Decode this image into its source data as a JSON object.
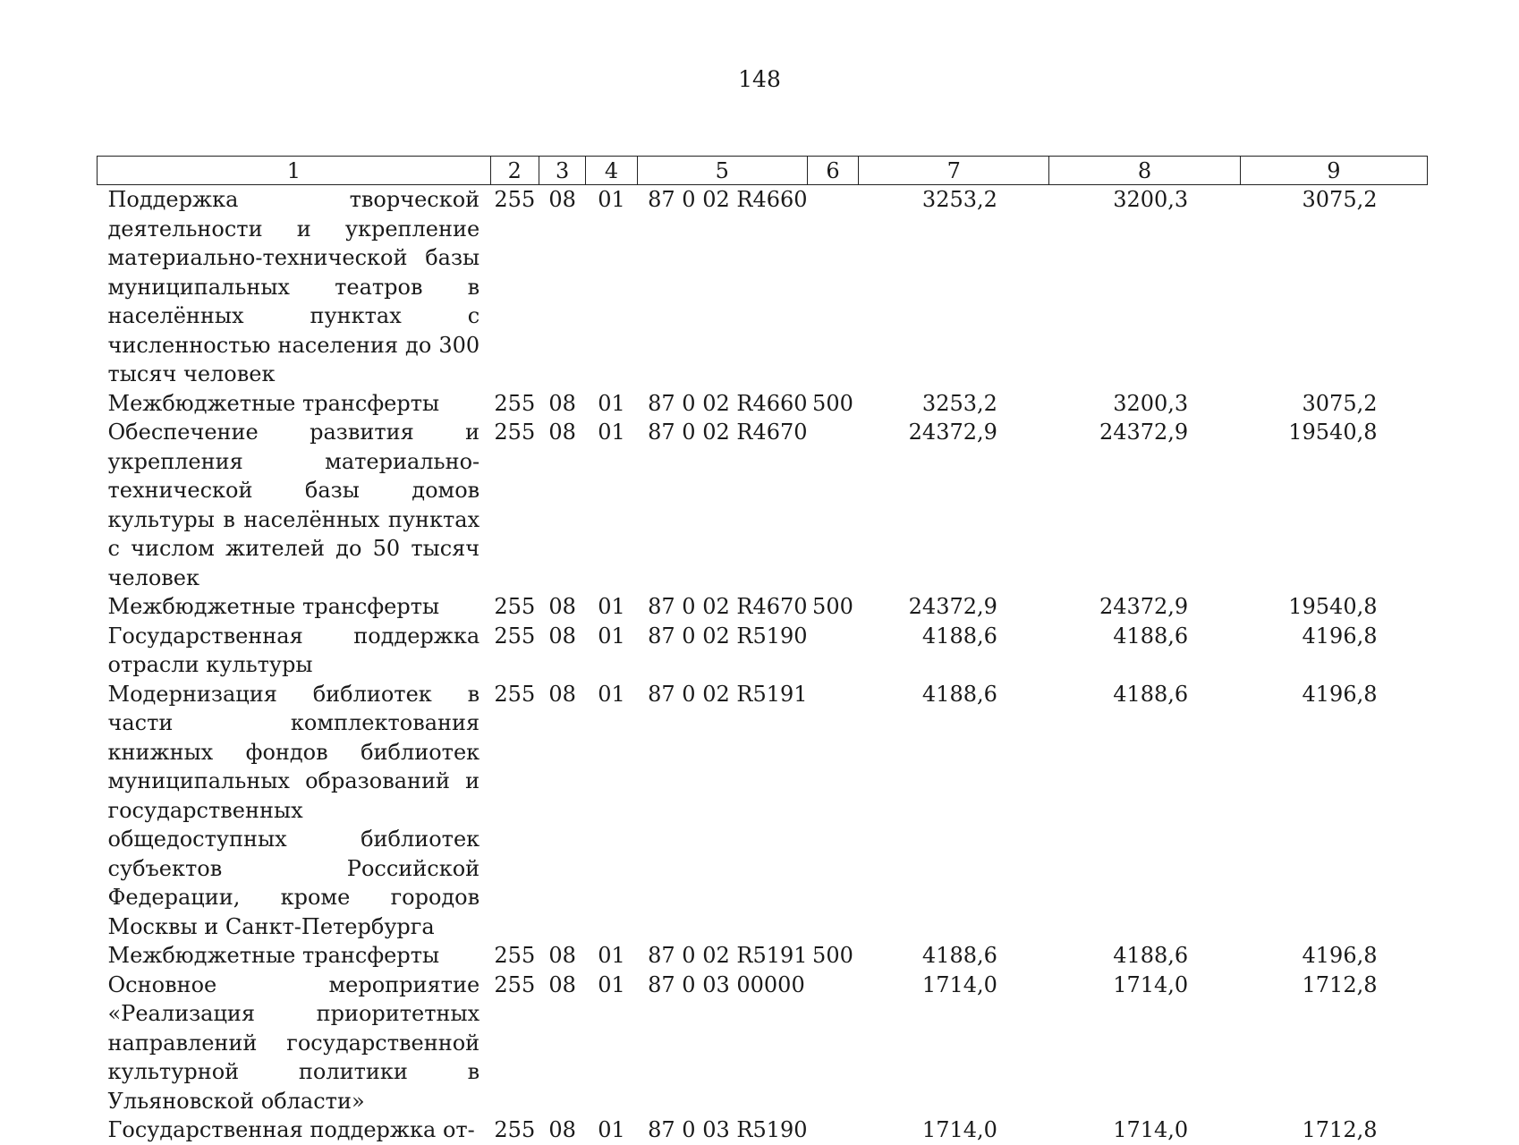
{
  "page_number": "148",
  "table": {
    "headers": [
      "1",
      "2",
      "3",
      "4",
      "5",
      "6",
      "7",
      "8",
      "9"
    ],
    "rows": [
      {
        "name": "Поддержка творческой деятельности и укрепление материально-технической базы муниципальных театров в населённых пунктах с численностью населения до 300 тысяч человек",
        "ved": "255",
        "sec": "08",
        "sub": "01",
        "csr": "87 0 02 R4660",
        "vr": "",
        "y1": "3253,2",
        "y2": "3200,3",
        "y3": "3075,2"
      },
      {
        "name": "Межбюджетные трансферты",
        "ved": "255",
        "sec": "08",
        "sub": "01",
        "csr": "87 0 02 R4660",
        "vr": "500",
        "y1": "3253,2",
        "y2": "3200,3",
        "y3": "3075,2"
      },
      {
        "name": "Обеспечение развития и укрепления материально-технической базы домов культуры в населённых пунктах с числом жителей до 50 тысяч человек",
        "ved": "255",
        "sec": "08",
        "sub": "01",
        "csr": "87 0 02 R4670",
        "vr": "",
        "y1": "24372,9",
        "y2": "24372,9",
        "y3": "19540,8"
      },
      {
        "name": "Межбюджетные трансферты",
        "ved": "255",
        "sec": "08",
        "sub": "01",
        "csr": "87 0 02 R4670",
        "vr": "500",
        "y1": "24372,9",
        "y2": "24372,9",
        "y3": "19540,8"
      },
      {
        "name": "Государственная поддержка отрасли культуры",
        "ved": "255",
        "sec": "08",
        "sub": "01",
        "csr": "87 0 02 R5190",
        "vr": "",
        "y1": "4188,6",
        "y2": "4188,6",
        "y3": "4196,8"
      },
      {
        "name": "Модернизация библиотек в части комплектования книжных фондов библиотек муниципальных образований и государственных общедоступных библиотек субъектов Российской Федерации, кроме городов Москвы и Санкт-Петербурга",
        "ved": "255",
        "sec": "08",
        "sub": "01",
        "csr": "87 0 02 R5191",
        "vr": "",
        "y1": "4188,6",
        "y2": "4188,6",
        "y3": "4196,8"
      },
      {
        "name": "Межбюджетные трансферты",
        "ved": "255",
        "sec": "08",
        "sub": "01",
        "csr": "87 0 02 R5191",
        "vr": "500",
        "y1": "4188,6",
        "y2": "4188,6",
        "y3": "4196,8"
      },
      {
        "name": "Основное мероприятие «Реализация приоритетных направлений государственной культурной политики в Ульяновской области»",
        "ved": "255",
        "sec": "08",
        "sub": "01",
        "csr": "87 0 03 00000",
        "vr": "",
        "y1": "1714,0",
        "y2": "1714,0",
        "y3": "1712,8"
      },
      {
        "name": "Государственная поддержка от-",
        "ved": "255",
        "sec": "08",
        "sub": "01",
        "csr": "87 0 03 R5190",
        "vr": "",
        "y1": "1714,0",
        "y2": "1714,0",
        "y3": "1712,8"
      }
    ]
  }
}
